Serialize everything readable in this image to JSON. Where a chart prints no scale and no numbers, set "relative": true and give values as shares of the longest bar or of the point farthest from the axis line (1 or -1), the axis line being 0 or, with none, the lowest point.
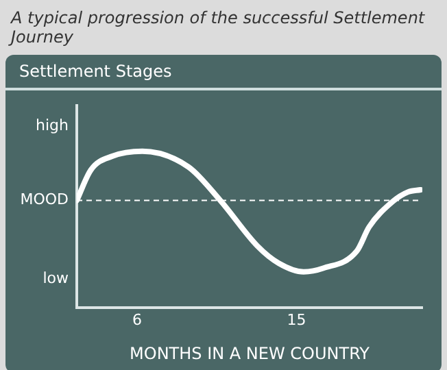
{
  "chart_data": {
    "type": "line",
    "title": "A typical progression of the successful Settlement Journey",
    "subtitle": "Settlement Stages",
    "xlabel": "MONTHS IN A NEW COUNTRY",
    "x": [
      2.6,
      3.4,
      4.6,
      6.3,
      8.9,
      10.7,
      12.8,
      14.0,
      15.4,
      16.5,
      18.4,
      19.1,
      20.4,
      21.3,
      22.0
    ],
    "series": [
      {
        "color": "#ffffff",
        "values": [
          0,
          0.43,
          0.62,
          0.69,
          0.47,
          0,
          -0.64,
          -0.88,
          -1,
          -0.95,
          -0.71,
          -0.37,
          -0.02,
          0.12,
          0.15
        ]
      }
    ],
    "relative": true,
    "xlim": [
      2.6,
      22.1
    ],
    "xticks": [
      6,
      15
    ],
    "annotations": [
      "high",
      "low"
    ],
    "ref_lines": [
      {
        "axis": "y",
        "value": 0,
        "label": "MOOD",
        "color": "#ffffff",
        "line_style": "dashed"
      }
    ],
    "grid": false,
    "legend": false,
    "marker": "none",
    "line_style": "solid"
  }
}
